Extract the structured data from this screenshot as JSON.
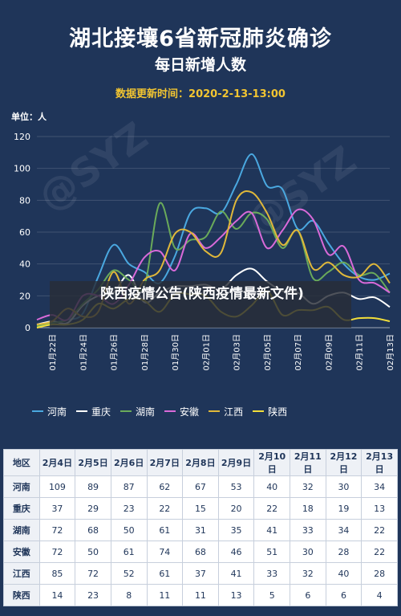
{
  "header": {
    "title": "湖北接壤6省新冠肺炎确诊",
    "subtitle": "每日新增人数",
    "update_time": "数据更新时间：2020-2-13-13:00",
    "unit": "单位：人"
  },
  "overlay": {
    "text": "陕西疫情公告(陕西疫情最新文件)"
  },
  "chart_data": {
    "type": "line",
    "ylim": [
      0,
      120
    ],
    "yticks": [
      0,
      20,
      40,
      60,
      80,
      100,
      120
    ],
    "grid": true,
    "x": [
      "01月21日",
      "01月22日",
      "01月23日",
      "01月24日",
      "01月25日",
      "01月26日",
      "01月27日",
      "01月28日",
      "01月29日",
      "01月30日",
      "01月31日",
      "02月01日",
      "02月02日",
      "02月03日",
      "02月04日",
      "02月05日",
      "02月06日",
      "02月07日",
      "02月08日",
      "02月09日",
      "02月10日",
      "02月11日",
      "02月12日",
      "02月13日"
    ],
    "xtick_labels": [
      "01月22日",
      "01月24日",
      "01月26日",
      "01月28日",
      "01月30日",
      "02月01日",
      "02月03日",
      "02月05日",
      "02月07日",
      "02月09日",
      "02月11日",
      "02月13日"
    ],
    "series": [
      {
        "name": "河南",
        "color": "#4aa8e0",
        "values": [
          2,
          3,
          5,
          9,
          32,
          52,
          40,
          35,
          28,
          45,
          72,
          75,
          72,
          90,
          109,
          89,
          87,
          62,
          67,
          53,
          40,
          32,
          30,
          34
        ]
      },
      {
        "name": "重庆",
        "color": "#ffffff",
        "values": [
          2,
          4,
          3,
          14,
          20,
          22,
          33,
          16,
          22,
          26,
          26,
          27,
          24,
          33,
          37,
          29,
          23,
          22,
          15,
          20,
          22,
          18,
          19,
          13
        ]
      },
      {
        "name": "湖南",
        "color": "#6aaa5a",
        "values": [
          1,
          3,
          5,
          15,
          24,
          36,
          30,
          26,
          78,
          50,
          55,
          57,
          73,
          62,
          72,
          68,
          50,
          61,
          31,
          35,
          41,
          33,
          34,
          22
        ]
      },
      {
        "name": "安徽",
        "color": "#d96ad9",
        "values": [
          5,
          8,
          5,
          20,
          20,
          15,
          27,
          44,
          48,
          36,
          59,
          50,
          57,
          67,
          72,
          50,
          61,
          74,
          68,
          46,
          51,
          30,
          28,
          22
        ]
      },
      {
        "name": "江西",
        "color": "#e0b83a",
        "values": [
          2,
          4,
          12,
          7,
          10,
          35,
          15,
          30,
          36,
          59,
          60,
          48,
          47,
          80,
          85,
          72,
          52,
          61,
          37,
          41,
          33,
          32,
          40,
          28
        ]
      },
      {
        "name": "陕西",
        "color": "#f2de3a",
        "values": [
          0,
          2,
          2,
          5,
          15,
          12,
          18,
          17,
          10,
          21,
          21,
          20,
          10,
          7,
          14,
          23,
          8,
          11,
          11,
          13,
          5,
          6,
          6,
          4
        ]
      }
    ],
    "legend_position": "bottom"
  },
  "table": {
    "headers": [
      "地区",
      "2月4日",
      "2月5日",
      "2月6日",
      "2月7日",
      "2月8日",
      "2月9日",
      "2月10日",
      "2月11日",
      "2月12日",
      "2月13日"
    ],
    "rows": [
      [
        "河南",
        "109",
        "89",
        "87",
        "62",
        "67",
        "53",
        "40",
        "32",
        "30",
        "34"
      ],
      [
        "重庆",
        "37",
        "29",
        "23",
        "22",
        "15",
        "20",
        "22",
        "18",
        "19",
        "13"
      ],
      [
        "湖南",
        "72",
        "68",
        "50",
        "61",
        "31",
        "35",
        "41",
        "33",
        "34",
        "22"
      ],
      [
        "安徽",
        "72",
        "50",
        "61",
        "74",
        "68",
        "46",
        "51",
        "30",
        "28",
        "22"
      ],
      [
        "江西",
        "85",
        "72",
        "52",
        "61",
        "37",
        "41",
        "33",
        "32",
        "40",
        "28"
      ],
      [
        "陕西",
        "14",
        "23",
        "8",
        "11",
        "11",
        "13",
        "5",
        "6",
        "6",
        "4"
      ]
    ]
  }
}
